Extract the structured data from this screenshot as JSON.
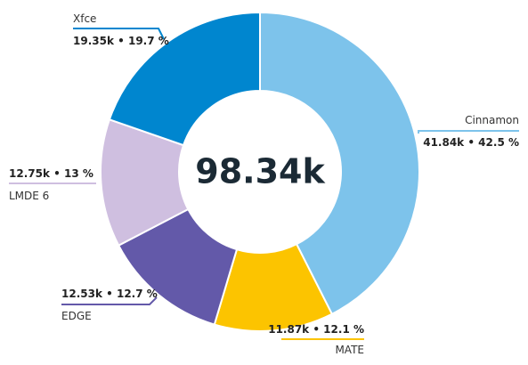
{
  "chart_data": {
    "type": "pie",
    "variant": "donut",
    "total_label": "98.34k",
    "slices": [
      {
        "name": "Cinnamon",
        "value": 41.84,
        "value_label": "41.84k",
        "percent_label": "42.5 %",
        "color": "#7dc3eb"
      },
      {
        "name": "MATE",
        "value": 11.87,
        "value_label": "11.87k",
        "percent_label": "12.1 %",
        "color": "#fcc400"
      },
      {
        "name": "EDGE",
        "value": 12.53,
        "value_label": "12.53k",
        "percent_label": "12.7 %",
        "color": "#6359a9"
      },
      {
        "name": "LMDE 6",
        "value": 12.75,
        "value_label": "12.75k",
        "percent_label": "13 %",
        "color": "#cfbfe0"
      },
      {
        "name": "Xfce",
        "value": 19.35,
        "value_label": "19.35k",
        "percent_label": "19.7 %",
        "color": "#0086cf"
      }
    ],
    "separator": "•"
  }
}
